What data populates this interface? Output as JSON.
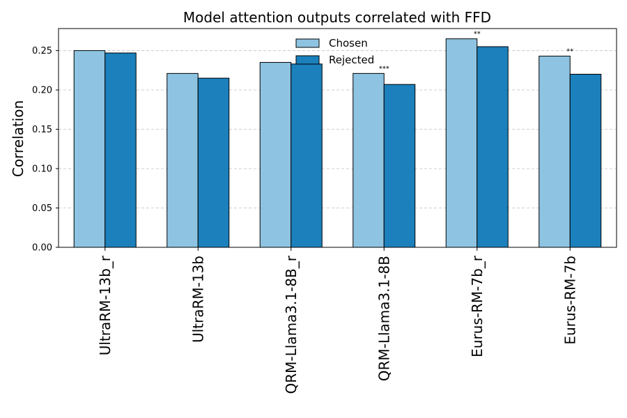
{
  "chart_data": {
    "type": "bar",
    "title": "Model attention outputs correlated with FFD",
    "xlabel": "",
    "ylabel": "Correlation",
    "ylim": [
      0,
      0.278
    ],
    "yticks": [
      0.0,
      0.05,
      0.1,
      0.15,
      0.2,
      0.25
    ],
    "grid": "y-dashed",
    "legend": "top-center",
    "categories": [
      "UltraRM-13b_r",
      "UltraRM-13b",
      "QRM-Llama3.1-8B_r",
      "QRM-Llama3.1-8B",
      "Eurus-RM-7b_r",
      "Eurus-RM-7b"
    ],
    "series": [
      {
        "name": "Chosen",
        "color": "#8ec4e2",
        "values": [
          0.25,
          0.221,
          0.235,
          0.221,
          0.265,
          0.243
        ]
      },
      {
        "name": "Rejected",
        "color": "#1b80bb",
        "values": [
          0.247,
          0.215,
          0.233,
          0.207,
          0.255,
          0.22
        ]
      }
    ],
    "annotations": [
      {
        "category": "QRM-Llama3.1-8B",
        "text": "***"
      },
      {
        "category": "Eurus-RM-7b_r",
        "text": "**"
      },
      {
        "category": "Eurus-RM-7b",
        "text": "**"
      }
    ]
  }
}
